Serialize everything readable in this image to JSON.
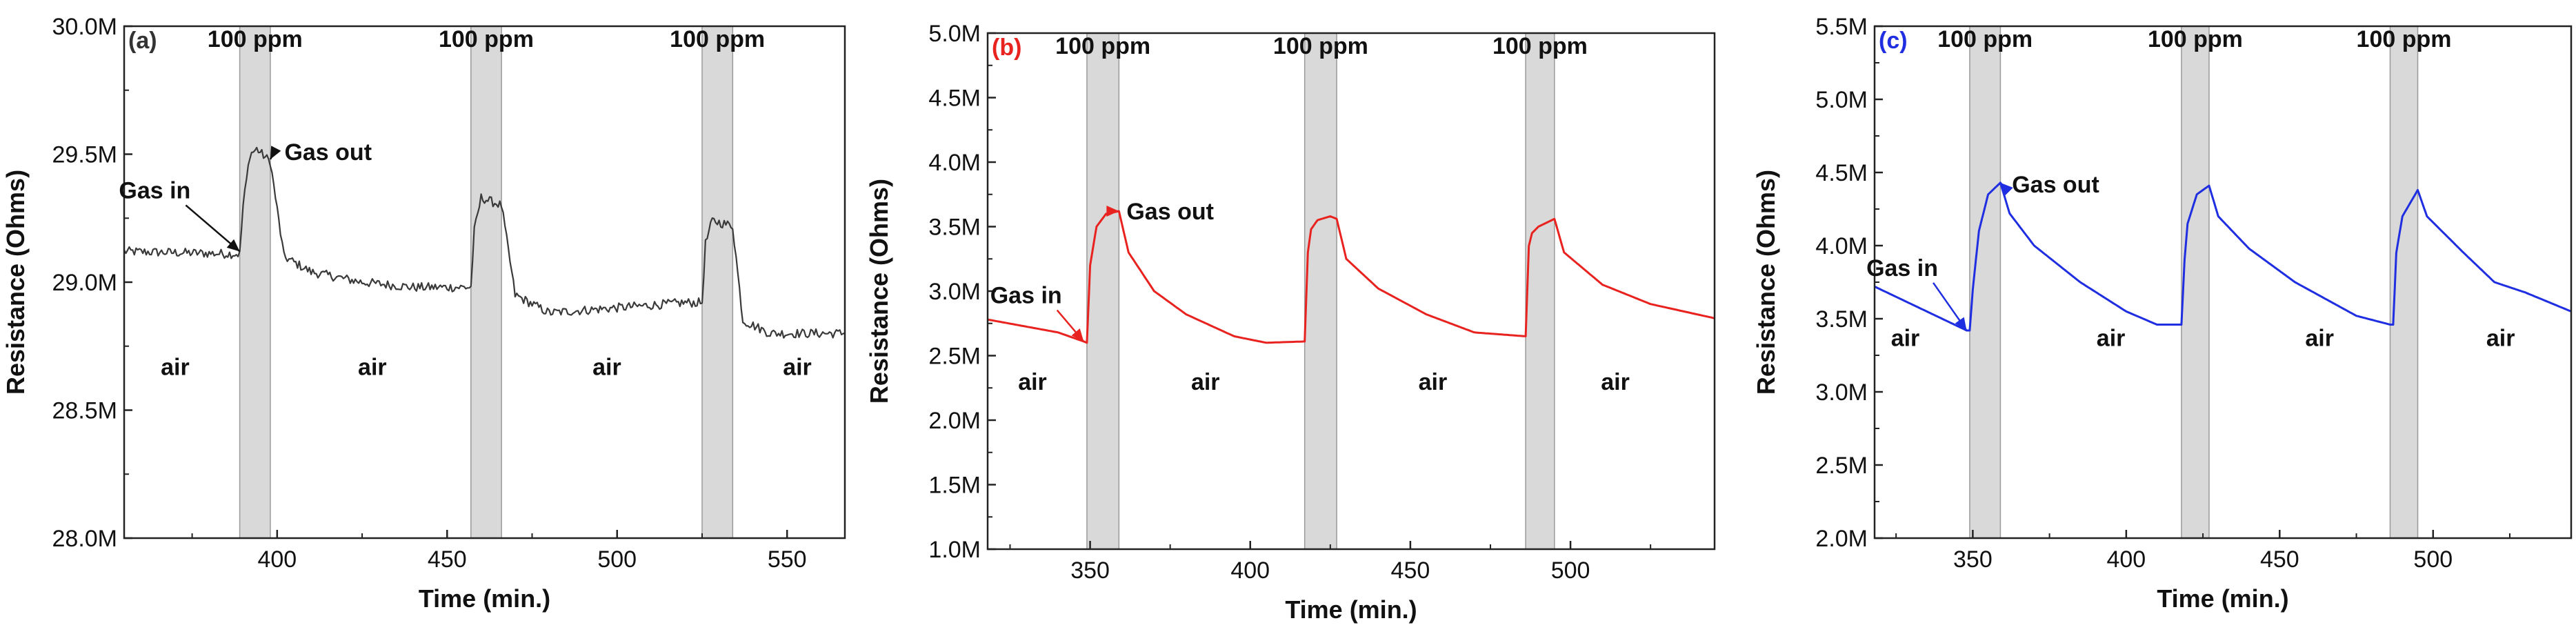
{
  "chart_data": [
    {
      "type": "line",
      "panel_label": "(a)",
      "color": "#3a3a3a",
      "xlabel": "Time (min.)",
      "ylabel": "Resistance (Ohms)",
      "xlim": [
        355,
        567
      ],
      "ylim": [
        28.0,
        30.0
      ],
      "xticks": [
        400,
        450,
        500,
        550
      ],
      "yticks": [
        28.0,
        28.5,
        29.0,
        29.5,
        30.0
      ],
      "ytick_labels": [
        "28.0M",
        "28.5M",
        "29.0M",
        "29.5M",
        "30.0M"
      ],
      "exposure_bands": [
        [
          389,
          398
        ],
        [
          457,
          466
        ],
        [
          525,
          534
        ]
      ],
      "band_label": "100 ppm",
      "noise": 0.018,
      "series": [
        {
          "name": "Resistance",
          "x": [
            355,
            389,
            390,
            392,
            394,
            398,
            402,
            410,
            425,
            440,
            457,
            458,
            460,
            466,
            470,
            480,
            500,
            520,
            525,
            526,
            528,
            534,
            537,
            545,
            560,
            567
          ],
          "y": [
            29.12,
            29.11,
            29.3,
            29.5,
            29.52,
            29.47,
            29.1,
            29.04,
            29.0,
            28.98,
            28.98,
            29.2,
            29.33,
            29.3,
            28.95,
            28.88,
            28.9,
            28.92,
            28.92,
            29.15,
            29.24,
            29.22,
            28.85,
            28.8,
            28.8,
            28.8
          ]
        }
      ],
      "annotations": [
        {
          "text": "Gas in",
          "x": 364,
          "y": 29.36,
          "arrow_to": [
            389,
            29.12
          ]
        },
        {
          "text": "Gas out",
          "x": 415,
          "y": 29.51,
          "arrow_to": [
            398,
            29.48
          ]
        }
      ],
      "region_labels": [
        {
          "text": "air",
          "x": 370,
          "y": 28.67
        },
        {
          "text": "air",
          "x": 428,
          "y": 28.67
        },
        {
          "text": "air",
          "x": 497,
          "y": 28.67
        },
        {
          "text": "air",
          "x": 553,
          "y": 28.67
        }
      ]
    },
    {
      "type": "line",
      "panel_label": "(b)",
      "color": "#e8231f",
      "xlabel": "Time (min.)",
      "ylabel": "Resistance (Ohms)",
      "xlim": [
        318,
        545
      ],
      "ylim": [
        1.0,
        5.0
      ],
      "xticks": [
        350,
        400,
        450,
        500
      ],
      "yticks": [
        1.0,
        1.5,
        2.0,
        2.5,
        3.0,
        3.5,
        4.0,
        4.5,
        5.0
      ],
      "ytick_labels": [
        "1.0M",
        "1.5M",
        "2.0M",
        "2.5M",
        "3.0M",
        "3.5M",
        "4.0M",
        "4.5M",
        "5.0M"
      ],
      "exposure_bands": [
        [
          349,
          359
        ],
        [
          417,
          427
        ],
        [
          486,
          495
        ]
      ],
      "band_label": "100 ppm",
      "noise": 0,
      "series": [
        {
          "name": "Resistance",
          "x": [
            318,
            340,
            348,
            349,
            350,
            352,
            355,
            359,
            362,
            370,
            380,
            395,
            405,
            417,
            418,
            419,
            421,
            425,
            427,
            430,
            440,
            455,
            470,
            486,
            487,
            488,
            490,
            495,
            498,
            510,
            525,
            545
          ],
          "y": [
            2.78,
            2.68,
            2.61,
            2.6,
            3.2,
            3.5,
            3.6,
            3.62,
            3.3,
            3.0,
            2.82,
            2.65,
            2.6,
            2.61,
            3.3,
            3.48,
            3.55,
            3.58,
            3.56,
            3.25,
            3.02,
            2.82,
            2.68,
            2.65,
            3.35,
            3.45,
            3.5,
            3.56,
            3.3,
            3.05,
            2.9,
            2.79
          ]
        }
      ],
      "annotations": [
        {
          "text": "Gas in",
          "x": 330,
          "y": 2.97,
          "arrow_to": [
            348,
            2.61
          ]
        },
        {
          "text": "Gas out",
          "x": 375,
          "y": 3.62,
          "arrow_to": [
            359,
            3.62
          ]
        }
      ],
      "region_labels": [
        {
          "text": "air",
          "x": 332,
          "y": 2.3
        },
        {
          "text": "air",
          "x": 386,
          "y": 2.3
        },
        {
          "text": "air",
          "x": 457,
          "y": 2.3
        },
        {
          "text": "air",
          "x": 514,
          "y": 2.3
        }
      ]
    },
    {
      "type": "line",
      "panel_label": "(c)",
      "color": "#1f2ee0",
      "xlabel": "Time (min.)",
      "ylabel": "Resistance (Ohms)",
      "xlim": [
        318,
        545
      ],
      "ylim": [
        2.0,
        5.5
      ],
      "xticks": [
        350,
        400,
        450,
        500
      ],
      "yticks": [
        2.0,
        2.5,
        3.0,
        3.5,
        4.0,
        4.5,
        5.0,
        5.5
      ],
      "ytick_labels": [
        "2.0M",
        "2.5M",
        "3.0M",
        "3.5M",
        "4.0M",
        "4.5M",
        "5.0M",
        "5.5M"
      ],
      "exposure_bands": [
        [
          349,
          359
        ],
        [
          418,
          427
        ],
        [
          486,
          495
        ]
      ],
      "band_label": "100 ppm",
      "noise": 0,
      "series": [
        {
          "name": "Resistance",
          "x": [
            318,
            330,
            348,
            349,
            350,
            352,
            355,
            359,
            362,
            370,
            385,
            400,
            410,
            418,
            419,
            420,
            423,
            427,
            430,
            440,
            455,
            475,
            486,
            487,
            488,
            490,
            495,
            498,
            510,
            520,
            530,
            545
          ],
          "y": [
            3.72,
            3.6,
            3.42,
            3.42,
            3.7,
            4.1,
            4.35,
            4.43,
            4.22,
            4.0,
            3.75,
            3.55,
            3.46,
            3.46,
            3.9,
            4.15,
            4.35,
            4.41,
            4.2,
            3.98,
            3.75,
            3.52,
            3.46,
            3.46,
            3.95,
            4.2,
            4.38,
            4.2,
            3.95,
            3.75,
            3.68,
            3.55
          ]
        }
      ],
      "annotations": [
        {
          "text": "Gas in",
          "x": 327,
          "y": 3.85,
          "arrow_to": [
            348,
            3.42
          ]
        },
        {
          "text": "Gas out",
          "x": 377,
          "y": 4.42,
          "arrow_to": [
            359,
            4.43
          ]
        }
      ],
      "region_labels": [
        {
          "text": "air",
          "x": 328,
          "y": 3.37
        },
        {
          "text": "air",
          "x": 395,
          "y": 3.37
        },
        {
          "text": "air",
          "x": 463,
          "y": 3.37
        },
        {
          "text": "air",
          "x": 522,
          "y": 3.37
        }
      ]
    }
  ]
}
